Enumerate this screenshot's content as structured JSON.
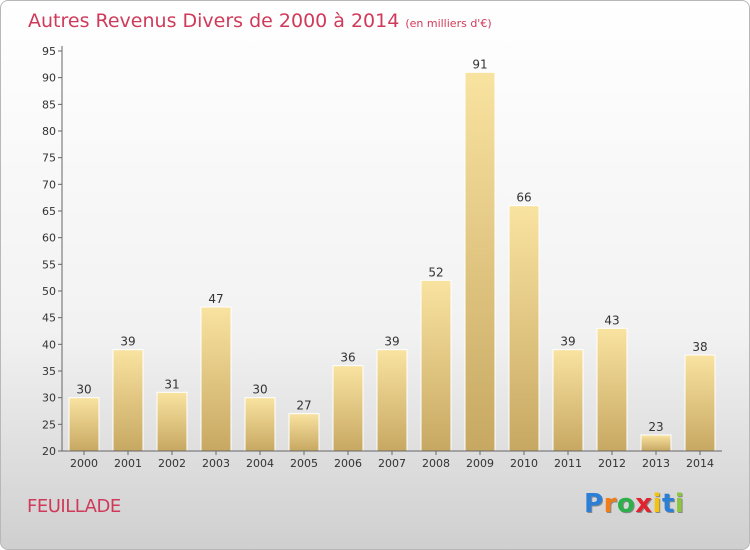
{
  "title": "Autres Revenus Divers de 2000 à 2014",
  "subtitle": "(en milliers d'€)",
  "location": "FEUILLADE",
  "logo": {
    "letters": [
      "P",
      "r",
      "o",
      "x",
      "i",
      "t",
      "i"
    ],
    "colors": [
      "#2b7fd6",
      "#f07d1a",
      "#2bb04a",
      "#e0232f",
      "#f5c20f",
      "#2b7fd6",
      "#8cc63f"
    ]
  },
  "colors": {
    "bar_light": "#f9e3a0",
    "bar_dark": "#c7a862",
    "title": "#d03a5a"
  },
  "chart_data": {
    "type": "bar",
    "categories": [
      "2000",
      "2001",
      "2002",
      "2003",
      "2004",
      "2005",
      "2006",
      "2007",
      "2008",
      "2009",
      "2010",
      "2011",
      "2012",
      "2013",
      "2014"
    ],
    "values": [
      30,
      39,
      31,
      47,
      30,
      27,
      36,
      39,
      52,
      91,
      66,
      39,
      43,
      23,
      38
    ],
    "title": "Autres Revenus Divers de 2000 à 2014",
    "xlabel": "",
    "ylabel": "",
    "ylim": [
      20,
      95
    ],
    "yticks": [
      20,
      25,
      30,
      35,
      40,
      45,
      50,
      55,
      60,
      65,
      70,
      75,
      80,
      85,
      90,
      95
    ],
    "grid": false
  }
}
